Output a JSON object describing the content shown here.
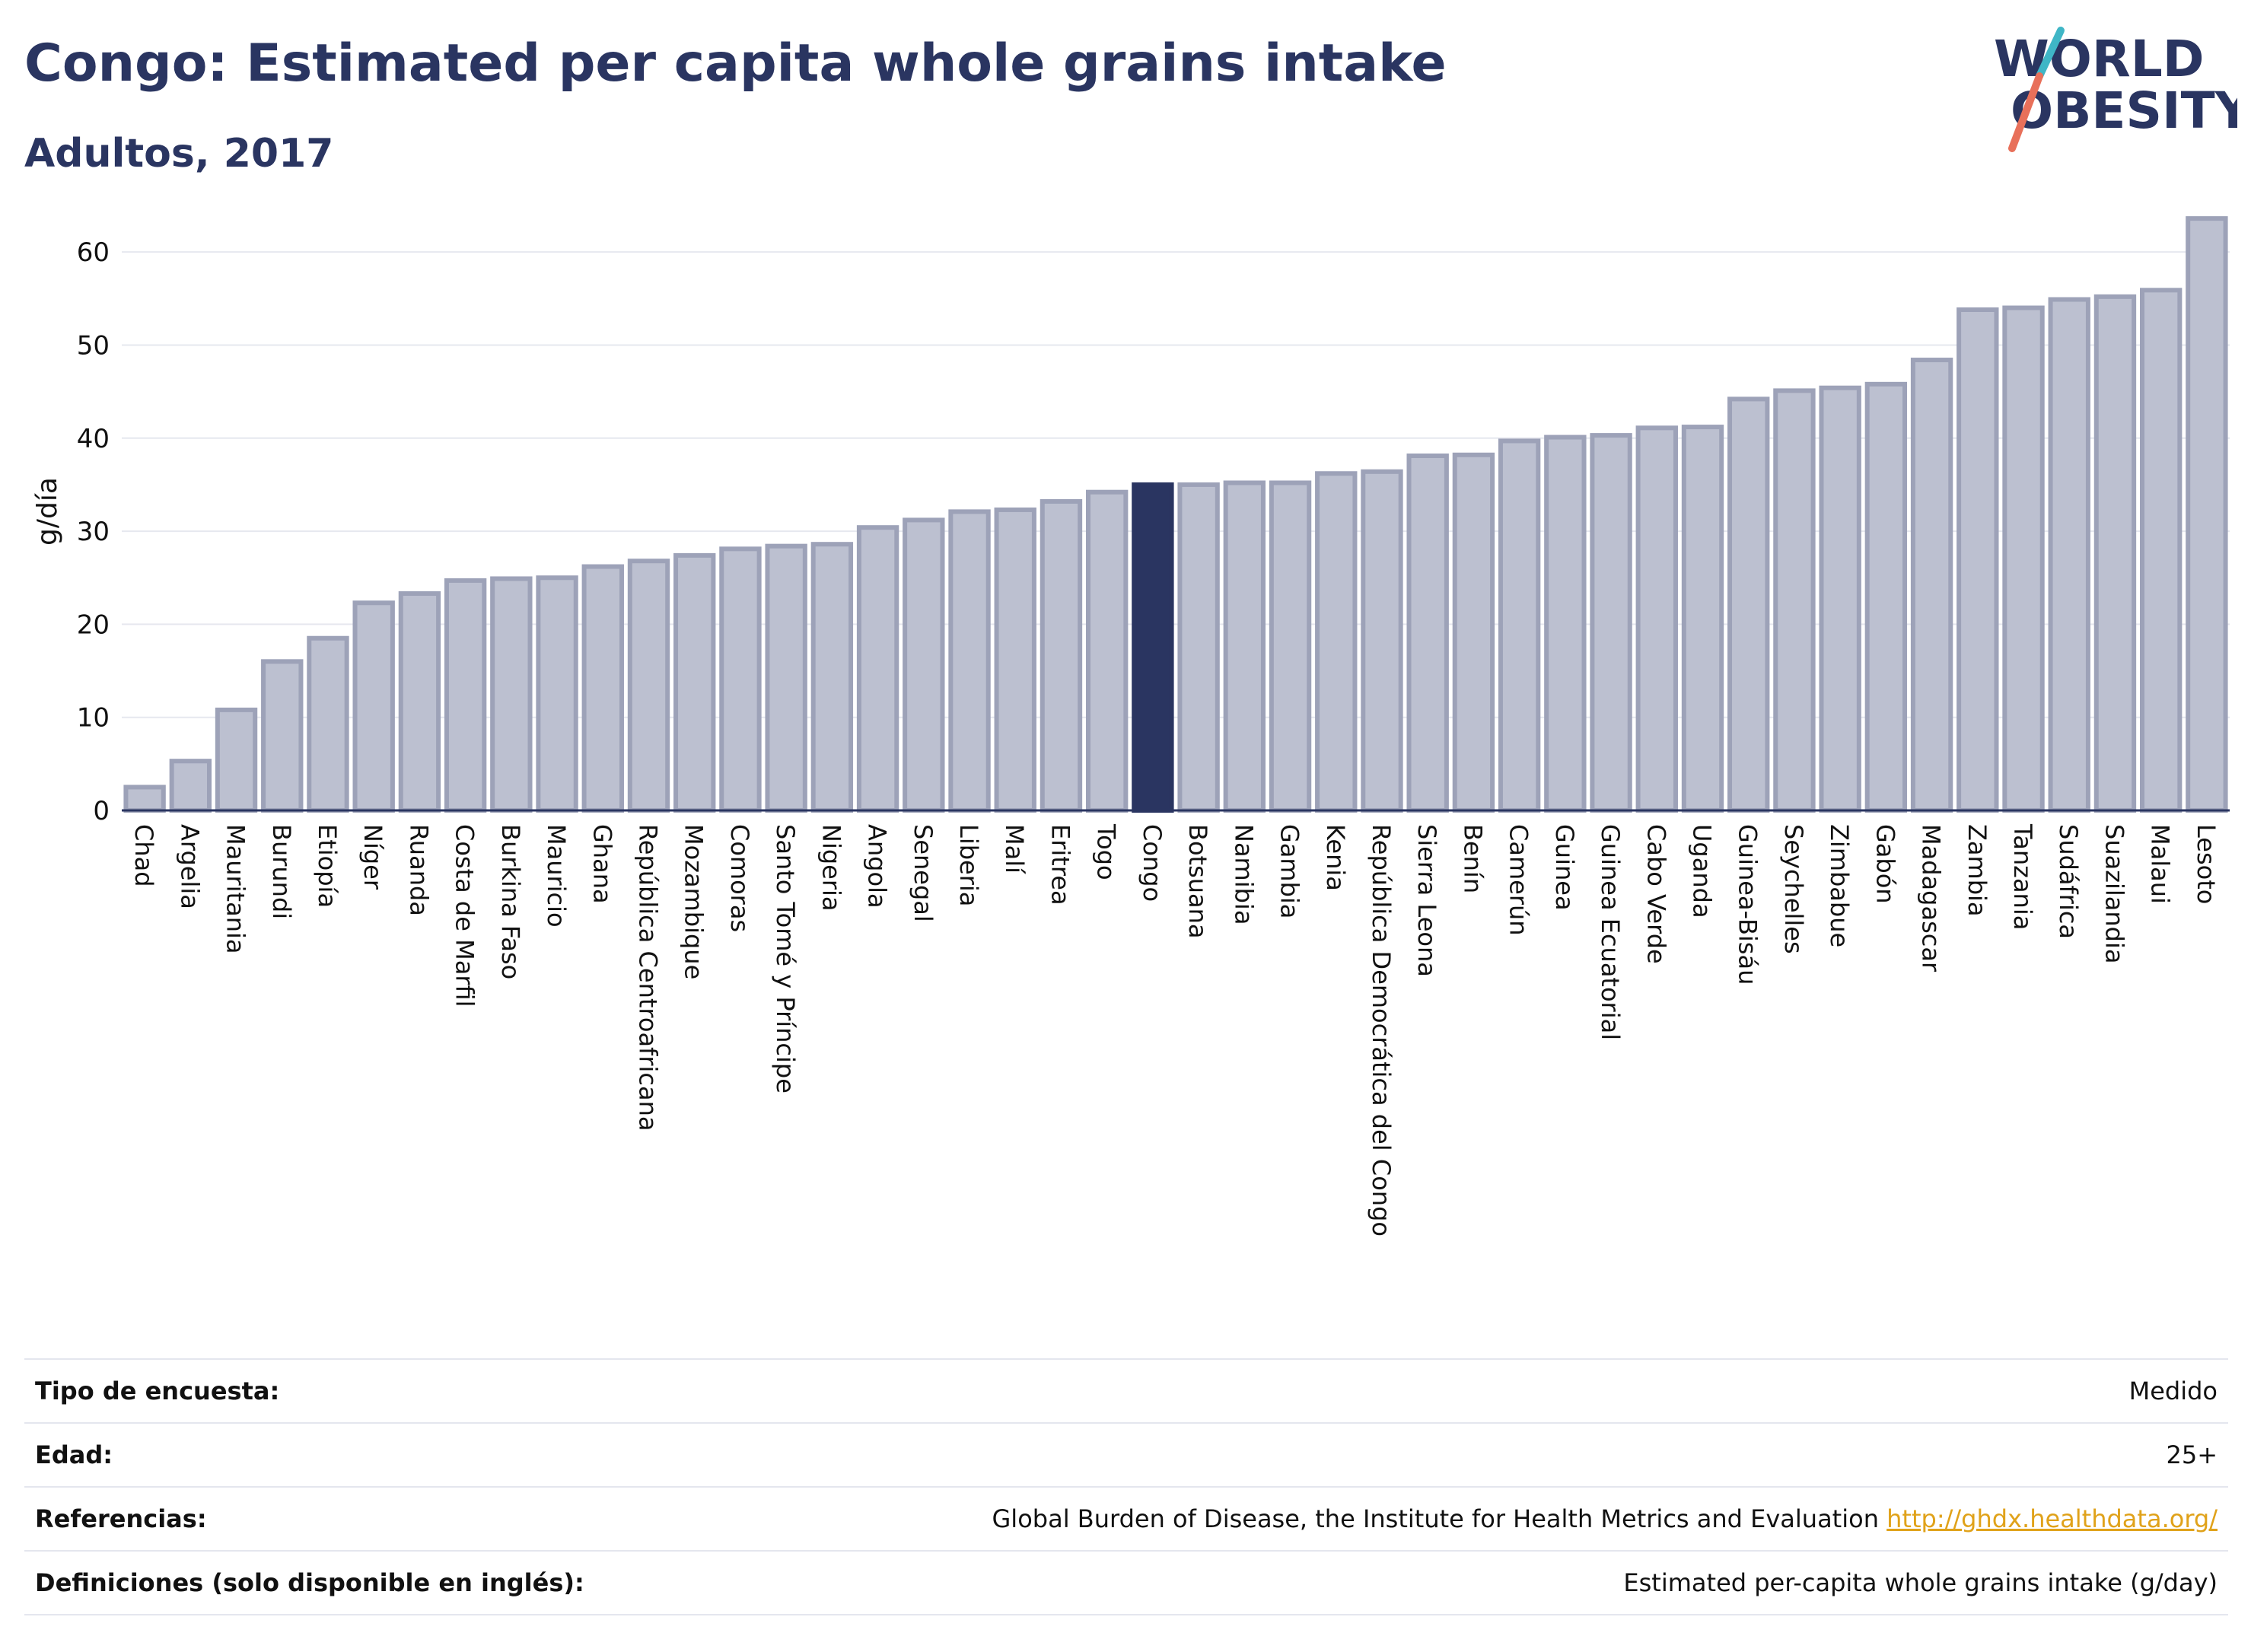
{
  "header": {
    "title": "Congo: Estimated per capita whole grains intake",
    "subtitle": "Adultos, 2017"
  },
  "logo": {
    "line1": "WORLD",
    "line2": "OBESITY",
    "colors": [
      "#2a3561",
      "#3fb6c6",
      "#e8705a"
    ]
  },
  "chart_data": {
    "type": "bar",
    "ylabel": "g/día",
    "ylim": [
      0,
      65
    ],
    "yticks": [
      0,
      10,
      20,
      30,
      40,
      50,
      60
    ],
    "grid": true,
    "highlight": "Congo",
    "colors": {
      "bar": "#bcc0d0",
      "bar_edge": "#9da2b8",
      "highlight": "#2a3561",
      "grid": "#e6e8ef"
    },
    "categories": [
      "Chad",
      "Argelia",
      "Mauritania",
      "Burundi",
      "Etiopía",
      "Níger",
      "Ruanda",
      "Costa de Marfil",
      "Burkina Faso",
      "Mauricio",
      "Ghana",
      "República Centroafricana",
      "Mozambique",
      "Comoras",
      "Santo Tomé y Príncipe",
      "Nigeria",
      "Angola",
      "Senegal",
      "Liberia",
      "Malí",
      "Eritrea",
      "Togo",
      "Congo",
      "Botsuana",
      "Namibia",
      "Gambia",
      "Kenia",
      "República Democrática del Congo",
      "Sierra Leona",
      "Benín",
      "Camerún",
      "Guinea",
      "Guinea Ecuatorial",
      "Cabo Verde",
      "Uganda",
      "Guinea-Bisáu",
      "Seychelles",
      "Zimbabue",
      "Gabón",
      "Madagascar",
      "Zambia",
      "Tanzania",
      "Sudáfrica",
      "Suazilandia",
      "Malaui",
      "Lesoto"
    ],
    "values": [
      2.5,
      5.3,
      10.8,
      16.0,
      18.5,
      22.3,
      23.3,
      24.7,
      24.9,
      25.0,
      26.2,
      26.8,
      27.4,
      28.1,
      28.4,
      28.6,
      30.4,
      31.2,
      32.1,
      32.3,
      33.2,
      34.2,
      35.0,
      35.0,
      35.2,
      35.2,
      36.2,
      36.4,
      38.1,
      38.2,
      39.7,
      40.1,
      40.3,
      41.1,
      41.2,
      44.2,
      45.1,
      45.4,
      45.8,
      48.4,
      53.8,
      54.0,
      54.9,
      55.2,
      55.9,
      63.6
    ]
  },
  "info": {
    "rows": [
      {
        "label": "Tipo de encuesta:",
        "value": "Medido"
      },
      {
        "label": "Edad:",
        "value": "25+"
      },
      {
        "label": "Referencias:",
        "value": "Global Burden of Disease, the Institute for Health Metrics and Evaluation",
        "link": "http://ghdx.healthdata.org/"
      },
      {
        "label": "Definiciones (solo disponible en inglés):",
        "value": "Estimated per-capita whole grains intake (g/day)"
      }
    ]
  }
}
